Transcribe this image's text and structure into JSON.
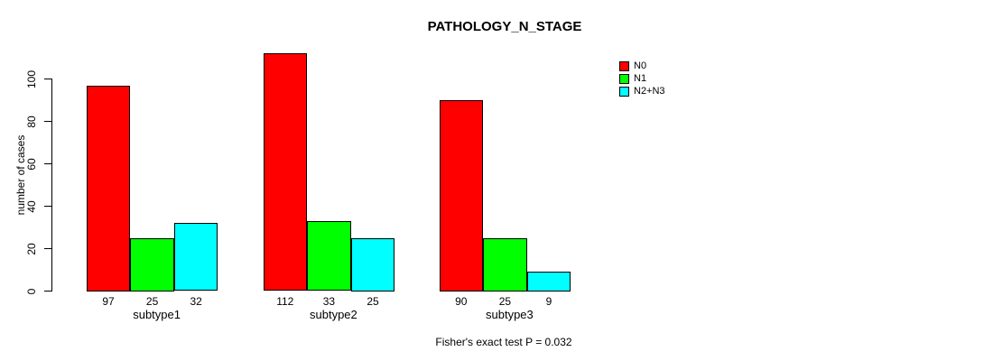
{
  "chart_data": {
    "type": "bar",
    "title": "PATHOLOGY_N_STAGE",
    "ylabel": "number of cases",
    "xlabel": "",
    "categories": [
      "subtype1",
      "subtype2",
      "subtype3"
    ],
    "series": [
      {
        "name": "N0",
        "color": "#ff0000",
        "values": [
          97,
          112,
          90
        ]
      },
      {
        "name": "N1",
        "color": "#00ff00",
        "values": [
          25,
          33,
          25
        ]
      },
      {
        "name": "N2+N3",
        "color": "#00ffff",
        "values": [
          32,
          25,
          9
        ]
      }
    ],
    "yticks": [
      0,
      20,
      40,
      60,
      80,
      100
    ],
    "ylim": [
      0,
      112
    ],
    "grid": false,
    "bar_borders": "#000000",
    "bar_value_labels_shown": true,
    "legend_position": "top-right-outside",
    "annotation": "Fisher's exact test P = 0.032",
    "background": "#ffffff"
  }
}
